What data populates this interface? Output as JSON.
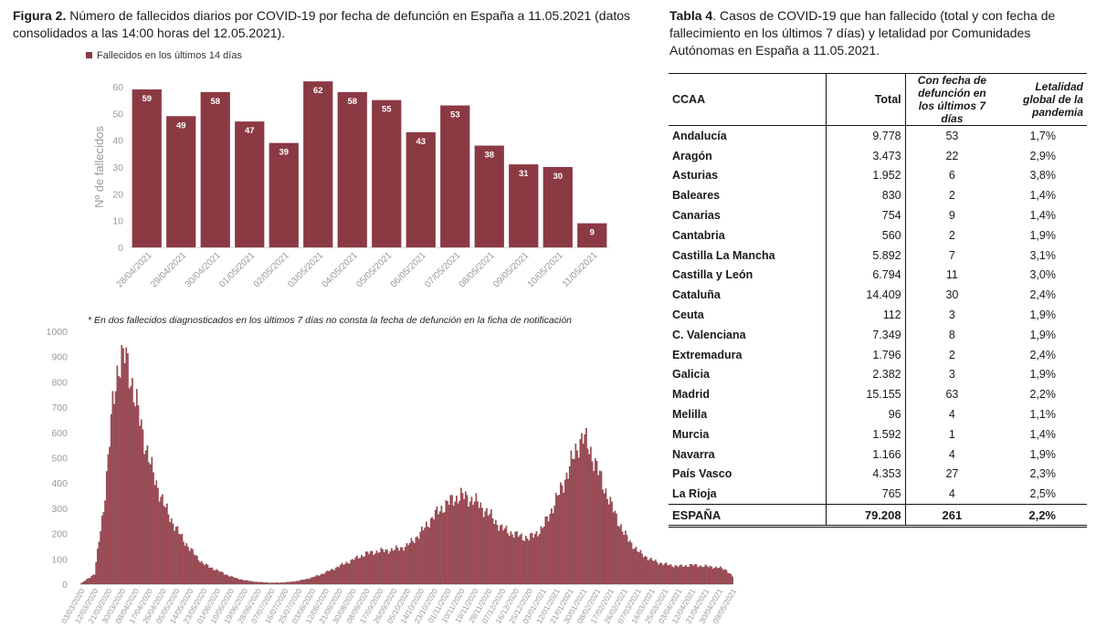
{
  "figure": {
    "label": "Figura 2.",
    "text": " Número de fallecidos diarios por COVID-19 por fecha de defunción en España a 11.05.2021 (datos consolidados a las 14:00 horas del 12.05.2021).",
    "footnote": "* En dos  fallecidos diagnosticados en los últimos 7 días no consta la fecha de defunción en la ficha de notificación"
  },
  "table": {
    "label": "Tabla 4",
    "text": ". Casos de COVID-19 que han fallecido (total y con fecha de fallecimiento en los últimos 7 días) y letalidad por Comunidades Autónomas en España a 11.05.2021.",
    "headers": [
      "CCAA",
      "Total",
      "Con fecha de defunción en los últimos 7 días",
      "Letalidad global de la pandemia"
    ],
    "rows": [
      [
        "Andalucía",
        "9.778",
        "53",
        "1,7%"
      ],
      [
        "Aragón",
        "3.473",
        "22",
        "2,9%"
      ],
      [
        "Asturias",
        "1.952",
        "6",
        "3,8%"
      ],
      [
        "Baleares",
        "830",
        "2",
        "1,4%"
      ],
      [
        "Canarias",
        "754",
        "9",
        "1,4%"
      ],
      [
        "Cantabria",
        "560",
        "2",
        "1,9%"
      ],
      [
        "Castilla La Mancha",
        "5.892",
        "7",
        "3,1%"
      ],
      [
        "Castilla y León",
        "6.794",
        "11",
        "3,0%"
      ],
      [
        "Cataluña",
        "14.409",
        "30",
        "2,4%"
      ],
      [
        "Ceuta",
        "112",
        "3",
        "1,9%"
      ],
      [
        "C. Valenciana",
        "7.349",
        "8",
        "1,9%"
      ],
      [
        "Extremadura",
        "1.796",
        "2",
        "2,4%"
      ],
      [
        "Galicia",
        "2.382",
        "3",
        "1,9%"
      ],
      [
        "Madrid",
        "15.155",
        "63",
        "2,2%"
      ],
      [
        "Melilla",
        "96",
        "4",
        "1,1%"
      ],
      [
        "Murcia",
        "1.592",
        "1",
        "1,4%"
      ],
      [
        "Navarra",
        "1.166",
        "4",
        "1,9%"
      ],
      [
        "País Vasco",
        "4.353",
        "27",
        "2,3%"
      ],
      [
        "La Rioja",
        "765",
        "4",
        "2,5%"
      ]
    ],
    "total": [
      "ESPAÑA",
      "79.208",
      "261",
      "2,2%"
    ]
  },
  "colors": {
    "bar": "#8b3a44",
    "bar_light": "#a14b55",
    "axis_text": "#9a9a9a"
  },
  "chart_data": [
    {
      "type": "bar",
      "legend": "Fallecidos en los últimos 14 días",
      "legend_position": "top-left",
      "ylabel": "Nº de fallecidos",
      "ylim": [
        0,
        60
      ],
      "yticks": [
        0,
        10,
        20,
        30,
        40,
        50,
        60
      ],
      "grid": false,
      "categories": [
        "28/04/2021",
        "29/04/2021",
        "30/04/2021",
        "01/05/2021",
        "02/05/2021",
        "03/05/2021",
        "04/05/2021",
        "05/05/2021",
        "06/05/2021",
        "07/05/2021",
        "08/05/2021",
        "09/05/2021",
        "10/05/2021",
        "11/05/2021"
      ],
      "values": [
        59,
        49,
        58,
        47,
        39,
        62,
        58,
        55,
        43,
        53,
        38,
        31,
        30,
        9
      ]
    },
    {
      "type": "bar",
      "ylim": [
        0,
        1000
      ],
      "yticks": [
        0,
        100,
        200,
        300,
        400,
        500,
        600,
        700,
        800,
        900,
        1000
      ],
      "grid": false,
      "x_start": "03/03/2020",
      "x_end": "09/05/2021",
      "xtick_labels": [
        "03/03/2020",
        "12/03/2020",
        "21/03/2020",
        "30/03/2020",
        "08/04/2020",
        "17/04/2020",
        "26/04/2020",
        "05/05/2020",
        "14/05/2020",
        "23/05/2020",
        "01/06/2020",
        "10/06/2020",
        "19/06/2020",
        "28/06/2020",
        "07/07/2020",
        "16/07/2020",
        "25/07/2020",
        "03/08/2020",
        "12/08/2020",
        "21/08/2020",
        "30/08/2020",
        "08/09/2020",
        "17/09/2020",
        "26/09/2020",
        "05/10/2020",
        "14/10/2020",
        "23/10/2020",
        "01/11/2020",
        "10/11/2020",
        "19/11/2020",
        "28/11/2020",
        "07/12/2020",
        "16/12/2020",
        "25/12/2020",
        "03/01/2021",
        "12/01/2021",
        "21/01/2021",
        "30/01/2021",
        "08/02/2021",
        "17/02/2021",
        "26/02/2021",
        "07/03/2021",
        "16/03/2021",
        "25/03/2021",
        "03/04/2021",
        "12/04/2021",
        "21/04/2021",
        "30/04/2021",
        "09/05/2021"
      ],
      "series_anchor_points": [
        [
          "03/03/2020",
          2
        ],
        [
          "12/03/2020",
          40
        ],
        [
          "18/03/2020",
          300
        ],
        [
          "24/03/2020",
          700
        ],
        [
          "28/03/2020",
          880
        ],
        [
          "01/04/2020",
          900
        ],
        [
          "05/04/2020",
          820
        ],
        [
          "12/04/2020",
          620
        ],
        [
          "20/04/2020",
          430
        ],
        [
          "28/04/2020",
          300
        ],
        [
          "05/05/2020",
          220
        ],
        [
          "14/05/2020",
          140
        ],
        [
          "23/05/2020",
          80
        ],
        [
          "01/06/2020",
          55
        ],
        [
          "10/06/2020",
          30
        ],
        [
          "19/06/2020",
          15
        ],
        [
          "28/06/2020",
          8
        ],
        [
          "07/07/2020",
          5
        ],
        [
          "16/07/2020",
          6
        ],
        [
          "25/07/2020",
          12
        ],
        [
          "03/08/2020",
          25
        ],
        [
          "12/08/2020",
          45
        ],
        [
          "21/08/2020",
          70
        ],
        [
          "30/08/2020",
          95
        ],
        [
          "08/09/2020",
          120
        ],
        [
          "17/09/2020",
          130
        ],
        [
          "26/09/2020",
          135
        ],
        [
          "05/10/2020",
          150
        ],
        [
          "14/10/2020",
          200
        ],
        [
          "23/10/2020",
          270
        ],
        [
          "01/11/2020",
          320
        ],
        [
          "10/11/2020",
          350
        ],
        [
          "19/11/2020",
          330
        ],
        [
          "28/11/2020",
          280
        ],
        [
          "07/12/2020",
          220
        ],
        [
          "16/12/2020",
          195
        ],
        [
          "25/12/2020",
          180
        ],
        [
          "03/01/2021",
          220
        ],
        [
          "12/01/2021",
          330
        ],
        [
          "21/01/2021",
          460
        ],
        [
          "27/01/2021",
          560
        ],
        [
          "30/01/2021",
          580
        ],
        [
          "03/02/2021",
          540
        ],
        [
          "08/02/2021",
          460
        ],
        [
          "17/02/2021",
          320
        ],
        [
          "26/02/2021",
          200
        ],
        [
          "07/03/2021",
          130
        ],
        [
          "16/03/2021",
          95
        ],
        [
          "25/03/2021",
          78
        ],
        [
          "03/04/2021",
          70
        ],
        [
          "12/04/2021",
          75
        ],
        [
          "21/04/2021",
          70
        ],
        [
          "30/04/2021",
          65
        ],
        [
          "05/05/2021",
          55
        ],
        [
          "09/05/2021",
          30
        ]
      ]
    }
  ]
}
